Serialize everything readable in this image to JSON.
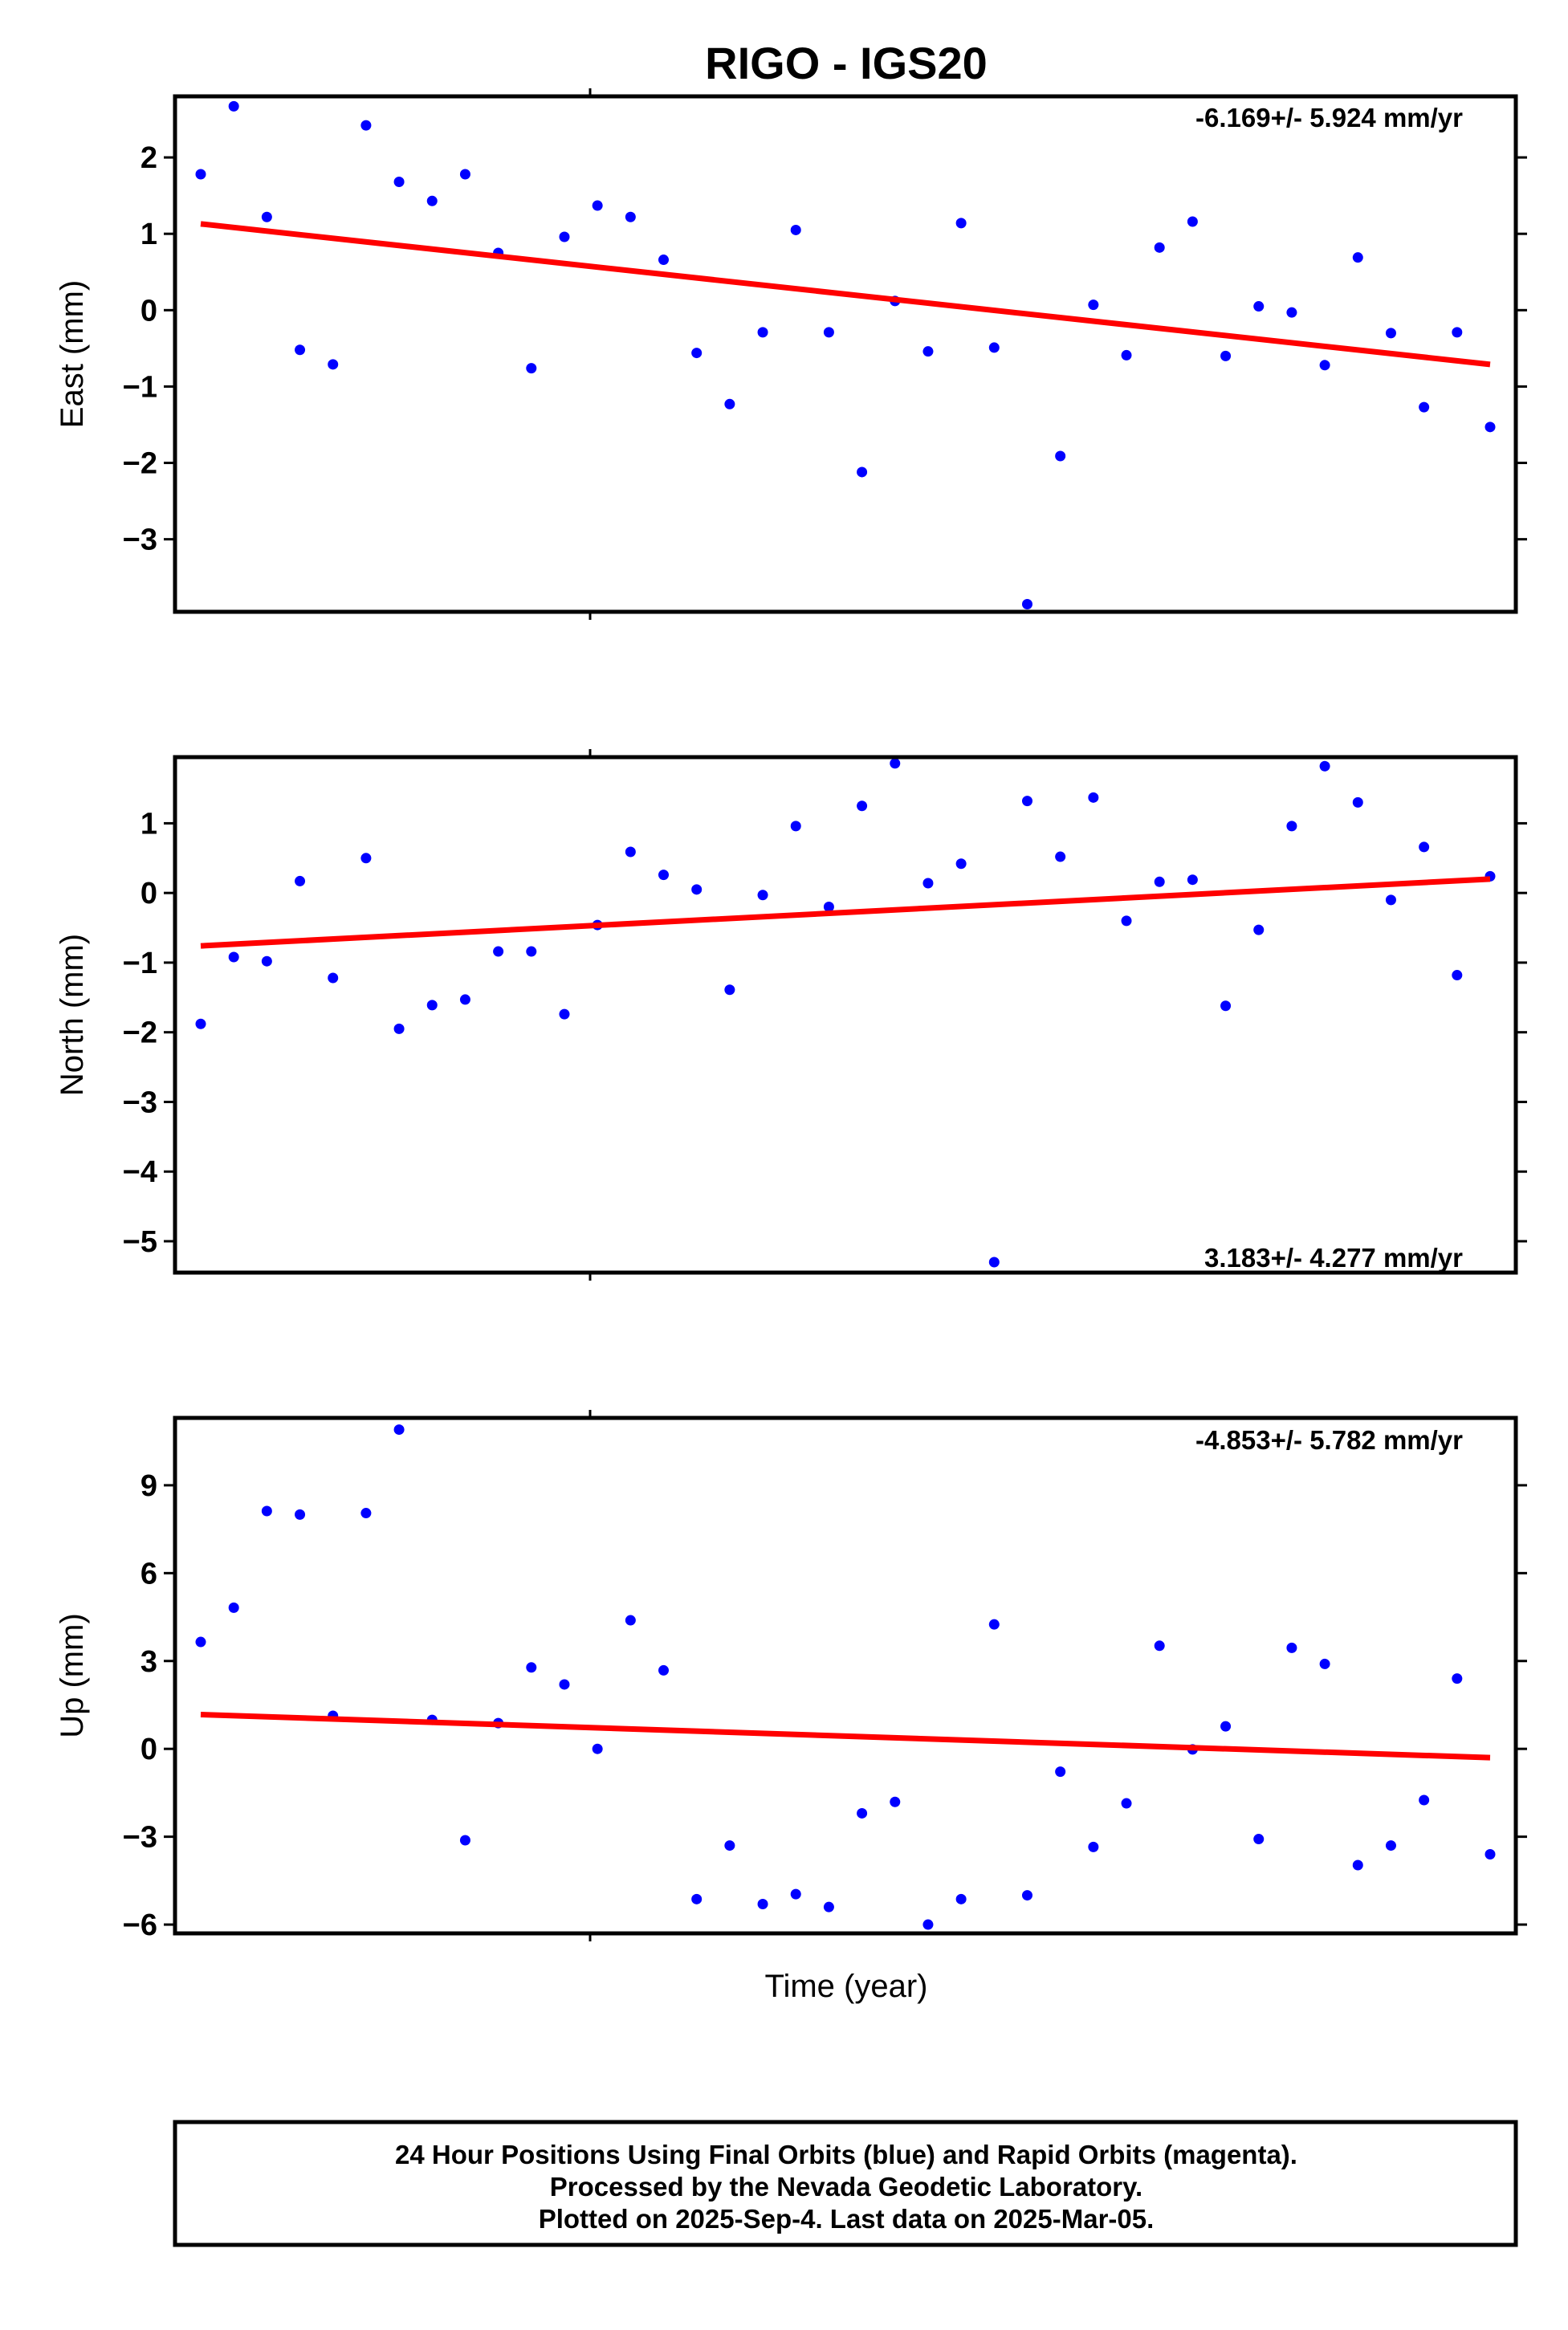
{
  "title": "RIGO - IGS20",
  "xlabel": "Time (year)",
  "colors": {
    "final_orbits": "#0000ff",
    "trend": "#ff0000",
    "frame": "#000000"
  },
  "chart_data": [
    {
      "type": "scatter",
      "panel": "east",
      "ylabel": "East (mm)",
      "ylim": [
        -3.95,
        2.8
      ],
      "yticks": [
        2,
        1,
        0,
        -1,
        -2,
        -3
      ],
      "ytick_labels": [
        "2",
        "1",
        "0",
        "−1",
        "−2",
        "−3"
      ],
      "rate_label": "-6.169+/- 5.924 mm/yr",
      "rate_position": "top-right",
      "series": [
        {
          "name": "Final Orbits",
          "color": "#0000ff",
          "x": [
            0,
            1,
            2,
            3,
            4,
            5,
            6,
            7,
            8,
            9,
            10,
            11,
            12,
            13,
            14,
            15,
            16,
            17,
            18,
            19,
            20,
            21,
            22,
            23,
            24,
            25,
            26,
            27,
            28,
            29,
            30,
            31,
            32,
            33,
            34,
            35,
            36,
            37,
            38,
            39
          ],
          "values": [
            1.78,
            2.67,
            1.22,
            -0.52,
            -0.71,
            2.42,
            1.68,
            1.43,
            1.78,
            0.75,
            -0.76,
            0.96,
            1.37,
            1.22,
            0.66,
            -0.56,
            -1.23,
            -0.29,
            1.05,
            -0.29,
            -2.12,
            0.12,
            -0.54,
            1.14,
            -0.49,
            -3.85,
            -1.91,
            0.07,
            -0.59,
            0.82,
            1.16,
            -0.6,
            0.05,
            -0.03,
            -0.72,
            0.69,
            -0.3,
            -1.27,
            -0.29,
            -1.53
          ]
        }
      ],
      "trend": {
        "x": [
          0,
          39
        ],
        "values": [
          1.13,
          -0.71
        ]
      }
    },
    {
      "type": "scatter",
      "panel": "north",
      "ylabel": "North (mm)",
      "ylim": [
        -5.45,
        1.95
      ],
      "yticks": [
        1,
        0,
        -1,
        -2,
        -3,
        -4,
        -5
      ],
      "ytick_labels": [
        "1",
        "0",
        "−1",
        "−2",
        "−3",
        "−4",
        "−5"
      ],
      "rate_label": "3.183+/- 4.277 mm/yr",
      "rate_position": "bottom-right",
      "series": [
        {
          "name": "Final Orbits",
          "color": "#0000ff",
          "x": [
            0,
            1,
            2,
            3,
            4,
            5,
            6,
            7,
            8,
            9,
            10,
            11,
            12,
            13,
            14,
            15,
            16,
            17,
            18,
            19,
            20,
            21,
            22,
            23,
            24,
            25,
            26,
            27,
            28,
            29,
            30,
            31,
            32,
            33,
            34,
            35,
            36,
            37,
            38,
            39
          ],
          "values": [
            -1.88,
            -0.92,
            -0.98,
            0.17,
            -1.22,
            0.5,
            -1.95,
            -1.61,
            -1.53,
            -0.84,
            -0.84,
            -1.74,
            -0.46,
            0.59,
            0.26,
            0.05,
            -1.39,
            -0.03,
            0.96,
            -0.2,
            1.25,
            1.86,
            0.14,
            0.42,
            -5.3,
            1.32,
            0.52,
            1.37,
            -0.4,
            0.16,
            0.19,
            -1.62,
            -0.53,
            0.96,
            1.82,
            1.3,
            -0.1,
            0.66,
            -1.18,
            0.24
          ]
        }
      ],
      "trend": {
        "x": [
          0,
          39
        ],
        "values": [
          -0.76,
          0.2
        ]
      }
    },
    {
      "type": "scatter",
      "panel": "up",
      "ylabel": "Up (mm)",
      "ylim": [
        -6.3,
        11.3
      ],
      "yticks": [
        9,
        6,
        3,
        0,
        -3,
        -6
      ],
      "ytick_labels": [
        "9",
        "6",
        "3",
        "0",
        "−3",
        "−6"
      ],
      "rate_label": "-4.853+/- 5.782 mm/yr",
      "rate_position": "top-right",
      "series": [
        {
          "name": "Final Orbits",
          "color": "#0000ff",
          "x": [
            0,
            1,
            2,
            3,
            4,
            5,
            6,
            7,
            8,
            9,
            10,
            11,
            12,
            13,
            14,
            15,
            16,
            17,
            18,
            19,
            20,
            21,
            22,
            23,
            24,
            25,
            26,
            27,
            28,
            29,
            30,
            31,
            32,
            33,
            34,
            35,
            36,
            37,
            38,
            39
          ],
          "values": [
            3.65,
            4.82,
            8.12,
            8.0,
            1.13,
            8.05,
            10.9,
            0.99,
            -3.12,
            0.88,
            2.78,
            2.2,
            0.0,
            4.39,
            2.68,
            -5.13,
            -3.3,
            -5.3,
            -4.96,
            -5.4,
            -2.2,
            -1.81,
            -6.0,
            -5.13,
            4.25,
            -5.0,
            -0.78,
            -3.35,
            -1.86,
            3.52,
            -0.02,
            0.77,
            -3.08,
            3.45,
            2.9,
            -3.97,
            -3.3,
            -1.75,
            2.4,
            -3.6
          ]
        }
      ],
      "trend": {
        "x": [
          0,
          39
        ],
        "values": [
          1.17,
          -0.3
        ]
      }
    }
  ],
  "footer": {
    "line1": "24 Hour Positions Using Final Orbits (blue) and Rapid Orbits (magenta).",
    "line2": "Processed by the Nevada Geodetic Laboratory.",
    "line3": "Plotted on 2025-Sep-4. Last data on 2025-Mar-05."
  }
}
